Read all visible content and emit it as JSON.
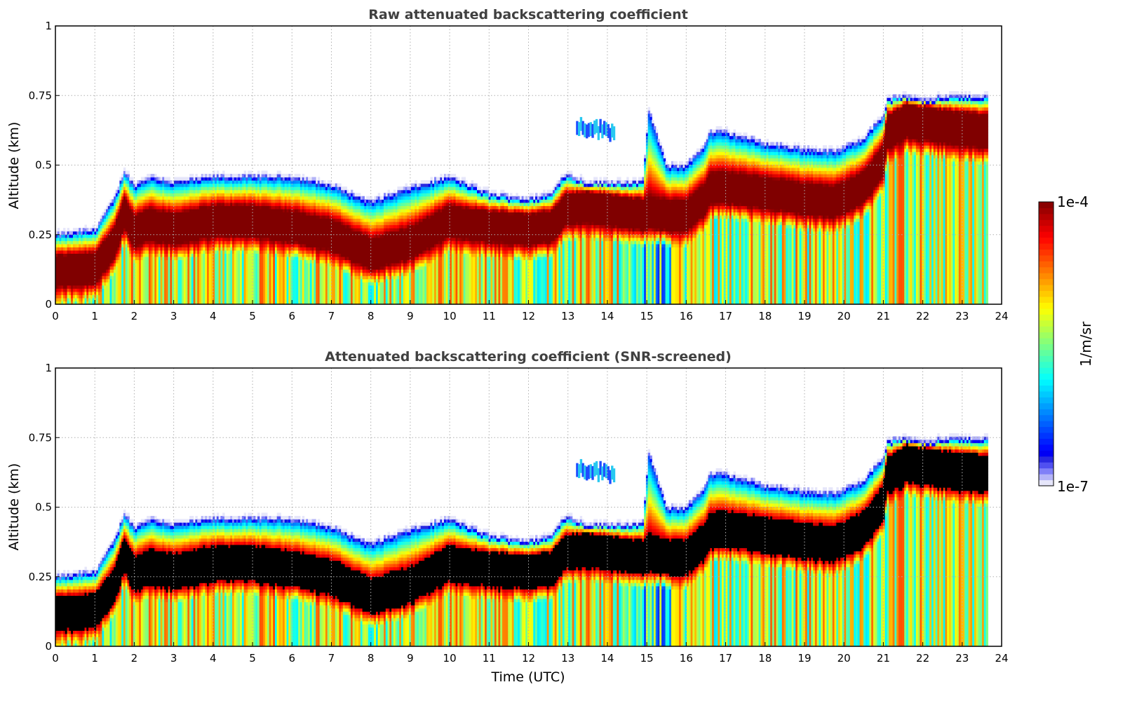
{
  "chart_data": [
    {
      "type": "heatmap",
      "title": "Raw attenuated backscattering coefficient",
      "xlabel": "",
      "ylabel": "Altitude (km)",
      "xlim": [
        0,
        24
      ],
      "ylim": [
        0,
        1
      ],
      "xticks": [
        "0",
        "1",
        "2",
        "3",
        "4",
        "5",
        "6",
        "7",
        "8",
        "9",
        "10",
        "11",
        "12",
        "13",
        "14",
        "15",
        "16",
        "17",
        "18",
        "19",
        "20",
        "21",
        "22",
        "23",
        "24"
      ],
      "yticks": [
        "0",
        "0.25",
        "0.5",
        "0.75",
        "1"
      ],
      "grid": true,
      "data_end_hour": 23.65,
      "masked_saturation": false,
      "layer_top_km": {
        "hours": [
          0,
          1,
          1.5,
          1.75,
          2.0,
          2.4,
          3,
          4,
          5,
          6,
          7,
          8,
          9,
          10,
          11,
          12,
          12.6,
          12.9,
          13.5,
          14.5,
          14.9,
          15.05,
          15.5,
          16,
          16.5,
          16.6,
          17,
          18,
          19,
          19.8,
          20.5,
          21,
          21.1,
          21.6,
          22,
          23,
          23.65
        ],
        "km": [
          0.25,
          0.27,
          0.38,
          0.48,
          0.43,
          0.46,
          0.44,
          0.46,
          0.46,
          0.46,
          0.43,
          0.37,
          0.42,
          0.46,
          0.4,
          0.38,
          0.4,
          0.47,
          0.44,
          0.44,
          0.44,
          0.7,
          0.5,
          0.5,
          0.58,
          0.62,
          0.62,
          0.58,
          0.56,
          0.55,
          0.6,
          0.68,
          0.74,
          0.75,
          0.74,
          0.75,
          0.75
        ]
      },
      "dense_layer_center_km": {
        "hours": [
          0,
          1,
          1.5,
          1.75,
          2.0,
          2.4,
          3,
          4,
          5,
          6,
          7,
          8,
          9,
          10,
          11,
          12,
          12.6,
          12.9,
          13.5,
          14.5,
          14.9,
          15.05,
          15.5,
          16,
          16.5,
          16.6,
          17,
          18,
          19,
          19.8,
          20.5,
          21,
          21.1,
          21.6,
          22,
          23,
          23.65
        ],
        "km": [
          0.12,
          0.13,
          0.22,
          0.33,
          0.26,
          0.29,
          0.27,
          0.3,
          0.3,
          0.28,
          0.25,
          0.18,
          0.22,
          0.3,
          0.28,
          0.27,
          0.28,
          0.34,
          0.35,
          0.33,
          0.32,
          0.33,
          0.32,
          0.32,
          0.38,
          0.42,
          0.42,
          0.4,
          0.38,
          0.37,
          0.42,
          0.52,
          0.62,
          0.66,
          0.65,
          0.63,
          0.62
        ]
      },
      "elevated_layer": {
        "hours": [
          13.2,
          14.2
        ],
        "km": [
          0.58,
          0.7
        ]
      }
    },
    {
      "type": "heatmap",
      "title": "Attenuated backscattering coefficient (SNR-screened)",
      "xlabel": "Time (UTC)",
      "ylabel": "Altitude (km)",
      "xlim": [
        0,
        24
      ],
      "ylim": [
        0,
        1
      ],
      "xticks": [
        "0",
        "1",
        "2",
        "3",
        "4",
        "5",
        "6",
        "7",
        "8",
        "9",
        "10",
        "11",
        "12",
        "13",
        "14",
        "15",
        "16",
        "17",
        "18",
        "19",
        "20",
        "21",
        "22",
        "23",
        "24"
      ],
      "yticks": [
        "0",
        "0.25",
        "0.5",
        "0.75",
        "1"
      ],
      "grid": true,
      "data_end_hour": 23.65,
      "masked_saturation": true,
      "masked_color": "#000000"
    }
  ],
  "colorbar": {
    "label": "1/m/sr",
    "max_label": "1e-4",
    "min_label": "1e-7",
    "min": 1e-07,
    "max": 0.0001,
    "scale": "log",
    "colormap": "jet",
    "low_colors": [
      "#e6e6fa",
      "#b4b4f8",
      "#8080f8",
      "#5050f0",
      "#2828e0"
    ]
  }
}
